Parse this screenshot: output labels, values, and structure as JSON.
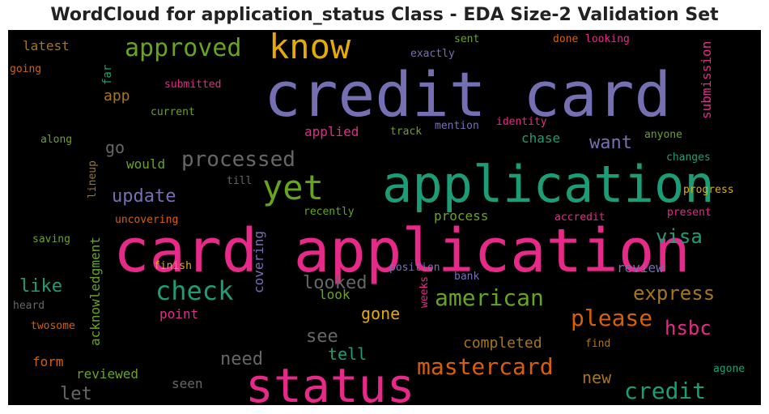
{
  "title": "WordCloud for application_status Class - EDA Size-2 Validation Set",
  "background_color": "#000000",
  "words": [
    {
      "text": "credit card",
      "color": "#7570b3"
    },
    {
      "text": "card application",
      "color": "#e7298a"
    },
    {
      "text": "application",
      "color": "#1b9e77"
    },
    {
      "text": "status",
      "color": "#e7298a"
    },
    {
      "text": "know",
      "color": "#e6ab02"
    },
    {
      "text": "yet",
      "color": "#66a61e"
    },
    {
      "text": "approved",
      "color": "#66a61e"
    },
    {
      "text": "check",
      "color": "#1b9e77"
    },
    {
      "text": "processed",
      "color": "#666666"
    },
    {
      "text": "american",
      "color": "#66a61e"
    },
    {
      "text": "mastercard",
      "color": "#d95f02"
    },
    {
      "text": "please",
      "color": "#d95f02"
    },
    {
      "text": "credit",
      "color": "#1b9e77"
    },
    {
      "text": "express",
      "color": "#a6761d"
    },
    {
      "text": "visa",
      "color": "#1b9e77"
    },
    {
      "text": "hsbc",
      "color": "#e7298a"
    },
    {
      "text": "update",
      "color": "#7570b3"
    },
    {
      "text": "want",
      "color": "#7570b3"
    },
    {
      "text": "looked",
      "color": "#666666"
    },
    {
      "text": "see",
      "color": "#666666"
    },
    {
      "text": "need",
      "color": "#666666"
    },
    {
      "text": "let",
      "color": "#666666"
    },
    {
      "text": "like",
      "color": "#1b9e77"
    },
    {
      "text": "gone",
      "color": "#e6ab02"
    },
    {
      "text": "tell",
      "color": "#1b9e77"
    },
    {
      "text": "new",
      "color": "#a6761d"
    },
    {
      "text": "go",
      "color": "#666666"
    },
    {
      "text": "app",
      "color": "#a6761d"
    },
    {
      "text": "completed",
      "color": "#a6761d"
    },
    {
      "text": "process",
      "color": "#66a61e"
    },
    {
      "text": "applied",
      "color": "#e7298a"
    },
    {
      "text": "acknowledgment",
      "color": "#66a61e"
    },
    {
      "text": "covering",
      "color": "#7570b3"
    },
    {
      "text": "submission",
      "color": "#e7298a"
    },
    {
      "text": "review",
      "color": "#7570b3"
    },
    {
      "text": "chase",
      "color": "#1b9e77"
    },
    {
      "text": "would",
      "color": "#66a61e"
    },
    {
      "text": "latest",
      "color": "#a6761d"
    },
    {
      "text": "far",
      "color": "#1b9e77"
    },
    {
      "text": "point",
      "color": "#e7298a"
    },
    {
      "text": "look",
      "color": "#66a61e"
    },
    {
      "text": "form",
      "color": "#d95f02"
    },
    {
      "text": "reviewed",
      "color": "#66a61e"
    },
    {
      "text": "seen",
      "color": "#666666"
    },
    {
      "text": "submitted",
      "color": "#e7298a"
    },
    {
      "text": "current",
      "color": "#66a61e"
    },
    {
      "text": "track",
      "color": "#66a61e"
    },
    {
      "text": "mention",
      "color": "#7570b3"
    },
    {
      "text": "identity",
      "color": "#e7298a"
    },
    {
      "text": "anyone",
      "color": "#66a61e"
    },
    {
      "text": "changes",
      "color": "#1b9e77"
    },
    {
      "text": "progress",
      "color": "#e6ab02"
    },
    {
      "text": "present",
      "color": "#e7298a"
    },
    {
      "text": "accredit",
      "color": "#e7298a"
    },
    {
      "text": "uncovering",
      "color": "#d95f02"
    },
    {
      "text": "recently",
      "color": "#66a61e"
    },
    {
      "text": "finish",
      "color": "#e6ab02"
    },
    {
      "text": "position",
      "color": "#7570b3"
    },
    {
      "text": "bank",
      "color": "#7570b3"
    },
    {
      "text": "weeks",
      "color": "#e7298a"
    },
    {
      "text": "lineup",
      "color": "#a6761d"
    },
    {
      "text": "till",
      "color": "#666666"
    },
    {
      "text": "along",
      "color": "#66a61e"
    },
    {
      "text": "saving",
      "color": "#66a61e"
    },
    {
      "text": "heard",
      "color": "#666666"
    },
    {
      "text": "twosome",
      "color": "#d95f02"
    },
    {
      "text": "going",
      "color": "#d95f02"
    },
    {
      "text": "sent",
      "color": "#66a61e"
    },
    {
      "text": "done",
      "color": "#d95f02"
    },
    {
      "text": "looking",
      "color": "#e7298a"
    },
    {
      "text": "exactly",
      "color": "#7570b3"
    },
    {
      "text": "find",
      "color": "#a6761d"
    },
    {
      "text": "agone",
      "color": "#1b9e77"
    }
  ]
}
